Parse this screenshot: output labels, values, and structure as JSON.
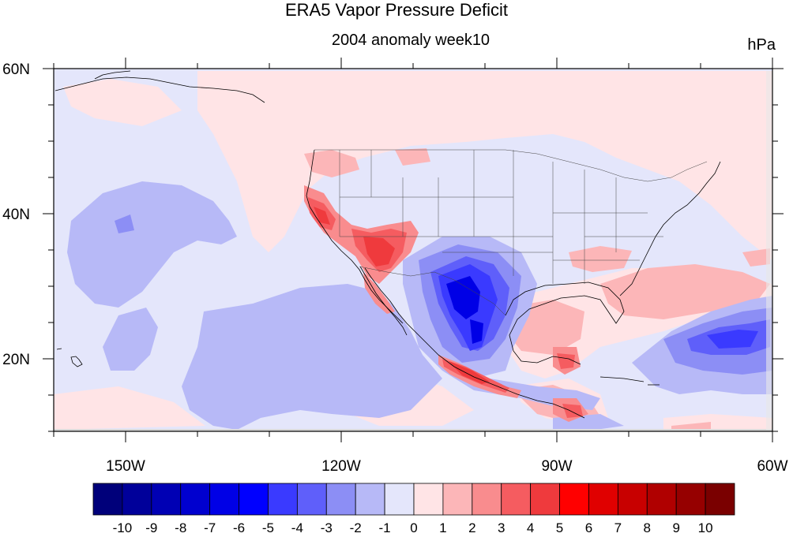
{
  "title": "ERA5 Vapor Pressure Deficit",
  "subtitle": "2004 anomaly week10",
  "units": "hPa",
  "map": {
    "lon_range": [
      -160,
      -60
    ],
    "lat_range": [
      10,
      60
    ],
    "lon_labels": [
      "150W",
      "120W",
      "90W",
      "60W"
    ],
    "lat_labels": [
      "60N",
      "40N",
      "20N"
    ],
    "lon_label_values": [
      -150,
      -120,
      -90,
      -60
    ],
    "lat_label_values": [
      60,
      40,
      20
    ]
  },
  "colorbar": {
    "labels": [
      "-10",
      "-9",
      "-8",
      "-7",
      "-6",
      "-5",
      "-4",
      "-3",
      "-2",
      "-1",
      "0",
      "1",
      "2",
      "3",
      "4",
      "5",
      "6",
      "7",
      "8",
      "9",
      "10"
    ],
    "colors": [
      "#00007a",
      "#00009a",
      "#0000b4",
      "#0000cf",
      "#0000e6",
      "#0000ff",
      "#3a3aff",
      "#5f5ffa",
      "#8c8ef5",
      "#b7b9f7",
      "#e4e6fb",
      "#ffe4e6",
      "#fcb6b8",
      "#f98c8e",
      "#f55c60",
      "#ef3a3d",
      "#ff0000",
      "#e00000",
      "#c80000",
      "#b00000",
      "#960000",
      "#7a0000"
    ]
  }
}
